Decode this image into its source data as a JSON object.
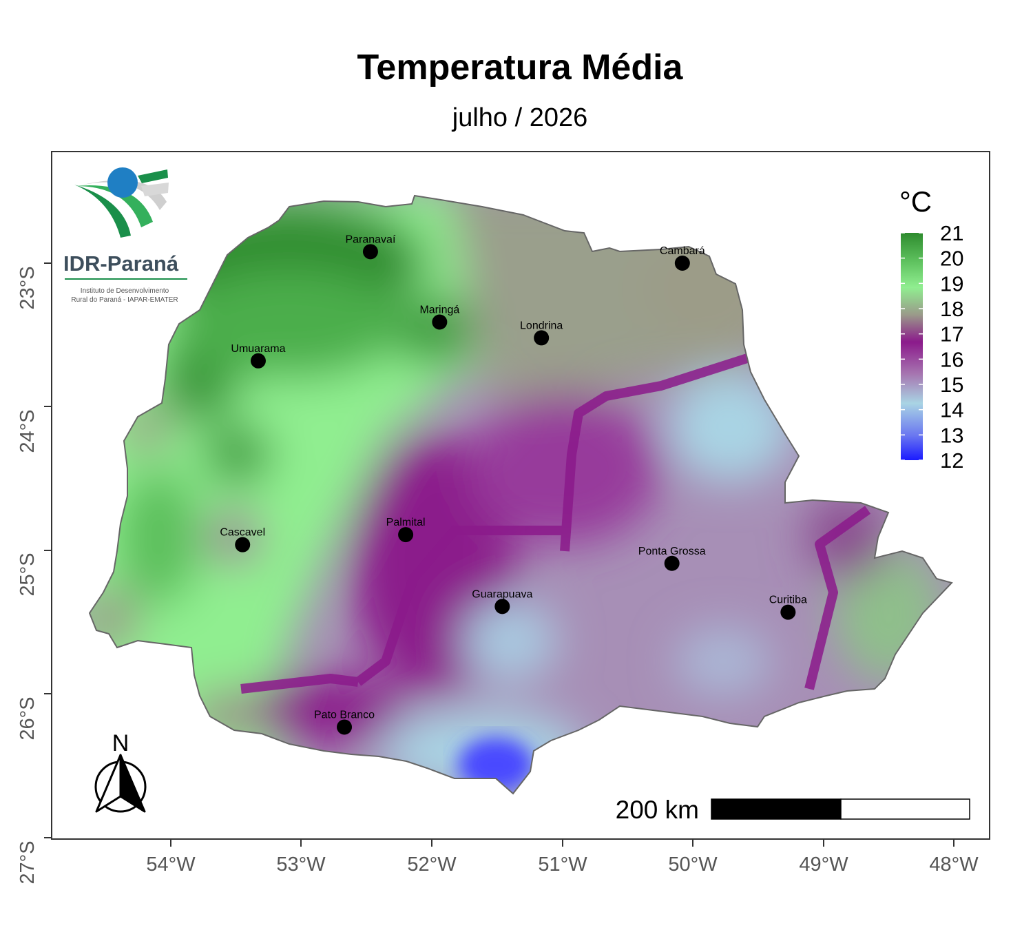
{
  "title": "Temperatura Média",
  "subtitle": "julho / 2026",
  "legend": {
    "unit": "°C",
    "min": 12,
    "max": 21,
    "ticks": [
      "21",
      "20",
      "19",
      "18",
      "17",
      "16",
      "15",
      "14",
      "13",
      "12"
    ],
    "colors": [
      "#2e8b2e",
      "#5cbf5c",
      "#90ee90",
      "#9a9a8a",
      "#8b1a8b",
      "#a675b0",
      "#a9d4e4",
      "#6666ff",
      "#1a1aff"
    ]
  },
  "axes": {
    "lat_labels": [
      "23°S",
      "24°S",
      "25°S",
      "26°S",
      "27°S"
    ],
    "lon_labels": [
      "54°W",
      "53°W",
      "52°W",
      "51°W",
      "50°W",
      "49°W",
      "48°W"
    ]
  },
  "cities": [
    {
      "name": "Paranavaí",
      "lon": -52.47,
      "lat": -22.92
    },
    {
      "name": "Cambará",
      "lon": -50.08,
      "lat": -23.0
    },
    {
      "name": "Maringá",
      "lon": -51.94,
      "lat": -23.41
    },
    {
      "name": "Londrina",
      "lon": -51.16,
      "lat": -23.52
    },
    {
      "name": "Umuarama",
      "lon": -53.33,
      "lat": -23.68
    },
    {
      "name": "Palmital",
      "lon": -52.2,
      "lat": -24.89
    },
    {
      "name": "Cascavel",
      "lon": -53.45,
      "lat": -24.96
    },
    {
      "name": "Ponta Grossa",
      "lon": -50.16,
      "lat": -25.09
    },
    {
      "name": "Guarapuava",
      "lon": -51.46,
      "lat": -25.39
    },
    {
      "name": "Curitiba",
      "lon": -49.27,
      "lat": -25.43
    },
    {
      "name": "Pato Branco",
      "lon": -52.67,
      "lat": -26.23
    }
  ],
  "scale_bar": {
    "label": "200 km"
  },
  "north_arrow": {
    "label": "N"
  },
  "logo": {
    "name": "IDR-Paraná",
    "line1": "Instituto de Desenvolvimento",
    "line2": "Rural do Paraná - IAPAR-EMATER"
  }
}
